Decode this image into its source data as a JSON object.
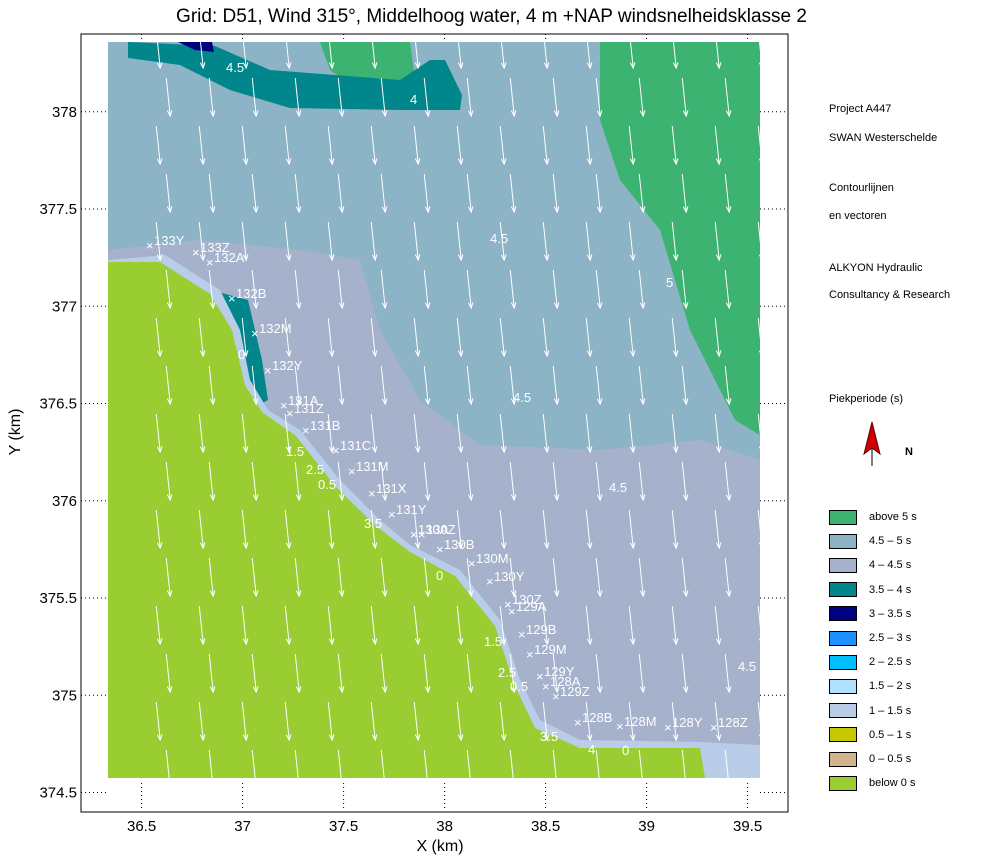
{
  "title": "Grid: D51, Wind 315°, Middelhoog water, 4 m +NAP windsnelheidsklasse 2",
  "chart_data": {
    "type": "heatmap",
    "title": "Grid: D51, Wind 315°, Middelhoog water, 4 m +NAP windsnelheidsklasse 2",
    "xlabel": "X (km)",
    "ylabel": "Y (km)",
    "xlim": [
      36.2,
      39.7
    ],
    "ylim": [
      374.4,
      378.4
    ],
    "xticks": [
      "36.5",
      "37",
      "37.5",
      "38",
      "38.5",
      "39",
      "39.5"
    ],
    "yticks": [
      "374.5",
      "375",
      "375.5",
      "376",
      "376.5",
      "377",
      "377.5",
      "378"
    ],
    "contour_labels": [
      "4.5",
      "4",
      "4.5",
      "5",
      "4.5",
      "4.5",
      "4.5",
      "0",
      "1.5",
      "2.5",
      "0.5",
      "3.5",
      "0",
      "1.5",
      "2.5",
      "0.5",
      "3.5",
      "4",
      "0"
    ],
    "station_labels": [
      "133Y",
      "133Z",
      "132A",
      "132B",
      "132M",
      "132Y",
      "131A",
      "131Z",
      "131B",
      "131C",
      "131M",
      "131X",
      "131Y",
      "130A",
      "130Z",
      "130B",
      "130M",
      "130Y",
      "130Z",
      "129A",
      "129B",
      "129M",
      "129Y",
      "128A",
      "129Z",
      "128B",
      "128M",
      "128Y",
      "128Z"
    ],
    "wind_direction_deg": 315
  },
  "side_text": {
    "line1": "Project A447",
    "line2": "SWAN Westerschelde",
    "line3": "Contourlijnen",
    "line4": "en vectoren",
    "line5": "ALKYON Hydraulic",
    "line6": "Consultancy & Research",
    "legend_title": "Piekperiode (s)",
    "north_label": "N"
  },
  "legend": [
    {
      "label": "above 5 s",
      "color": "#3cb371"
    },
    {
      "label": "4.5 – 5 s",
      "color": "#8cb3c6"
    },
    {
      "label": "4 – 4.5 s",
      "color": "#a6b2cc"
    },
    {
      "label": "3.5 – 4 s",
      "color": "#00868b"
    },
    {
      "label": "3 – 3.5 s",
      "color": "#000080"
    },
    {
      "label": "2.5 – 3 s",
      "color": "#1e90ff"
    },
    {
      "label": "2 – 2.5 s",
      "color": "#00bfff"
    },
    {
      "label": "1.5 – 2 s",
      "color": "#b0e2ff"
    },
    {
      "label": "1 – 1.5 s",
      "color": "#b9cde8"
    },
    {
      "label": "0.5 – 1 s",
      "color": "#c8c800"
    },
    {
      "label": "0 – 0.5 s",
      "color": "#d2b48c"
    },
    {
      "label": "below 0 s",
      "color": "#9acd32"
    }
  ],
  "colors": {
    "arrow": "#ffffff",
    "north_arrow": "#cc0000"
  }
}
